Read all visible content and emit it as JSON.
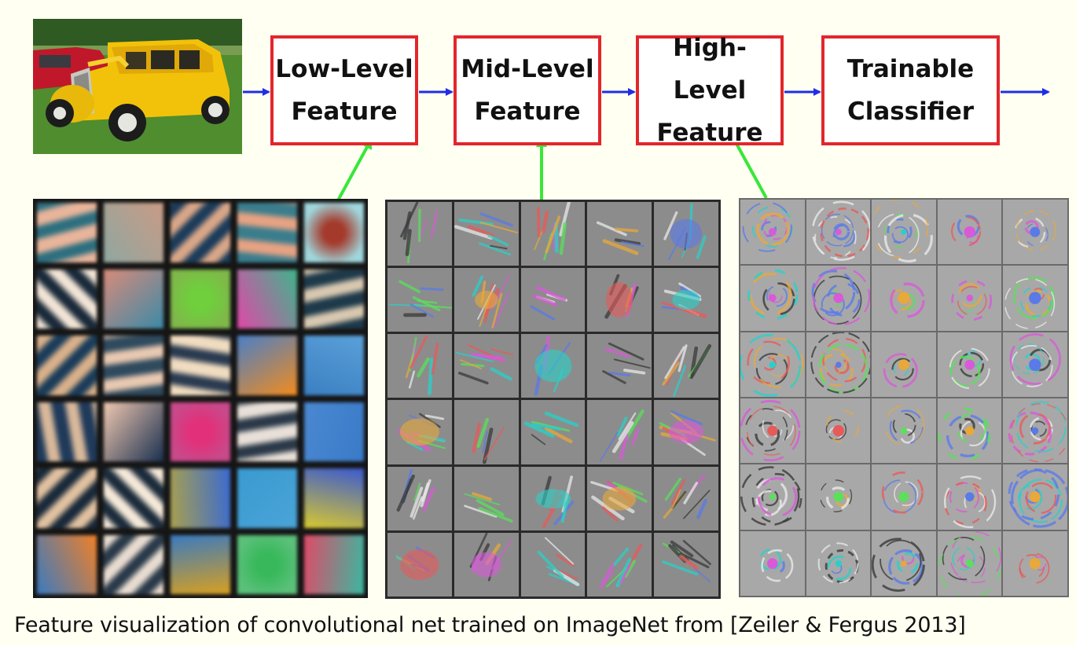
{
  "pipeline": {
    "stages": [
      {
        "line1": "Low-Level",
        "line2": "Feature"
      },
      {
        "line1": "Mid-Level",
        "line2": "Feature"
      },
      {
        "line1": "High-Level",
        "line2": "Feature"
      },
      {
        "line1": "Trainable",
        "line2": "Classifier"
      }
    ]
  },
  "caption": "Feature visualization of convolutional net trained on ImageNet from [Zeiler & Fergus 2013]",
  "colors": {
    "box_border": "#e3262b",
    "flow_arrow": "#1f2de8",
    "link_arrow": "#39e639",
    "background": "#fffff2"
  },
  "icons": {
    "input": "yellow-vintage-car-photo",
    "flow": "blue-arrow",
    "link": "green-arrow"
  },
  "feature_grids": {
    "rows": 6,
    "cols": 5
  }
}
